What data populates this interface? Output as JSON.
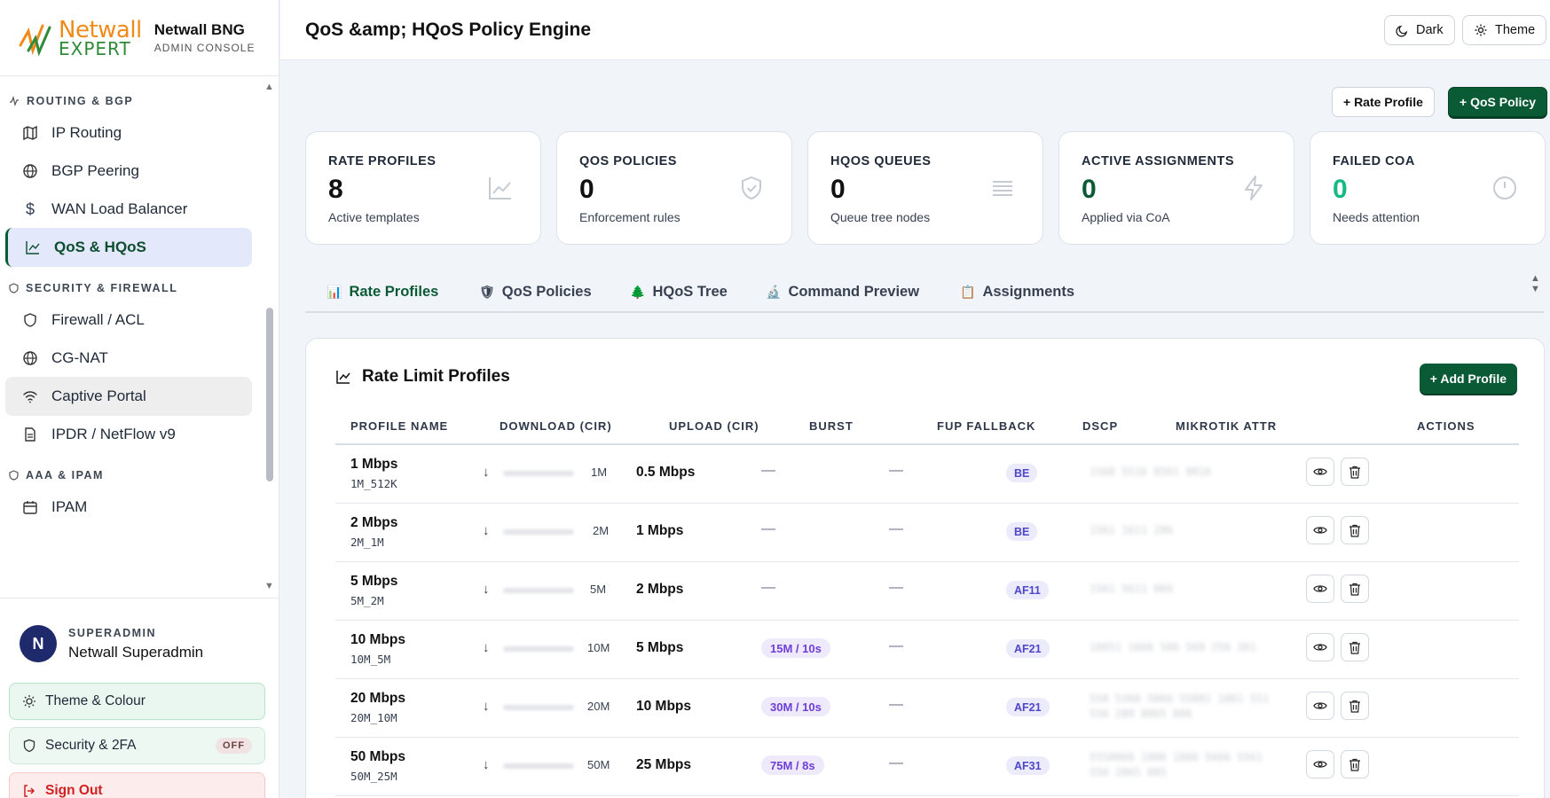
{
  "brand": {
    "logo_top": "Netwall",
    "logo_bottom": "EXPERT",
    "name": "Netwall BNG",
    "sub": "ADMIN CONSOLE"
  },
  "sidebar": {
    "sections": [
      {
        "title": "ROUTING & BGP",
        "icon": "activity-icon"
      },
      {
        "title": "SECURITY & FIREWALL",
        "icon": "shield-icon"
      },
      {
        "title": "AAA & IPAM",
        "icon": "shield-icon"
      }
    ],
    "items": [
      {
        "label": "IP Routing",
        "icon": "map-icon"
      },
      {
        "label": "BGP Peering",
        "icon": "globe-icon"
      },
      {
        "label": "WAN Load Balancer",
        "icon": "dollar-icon"
      },
      {
        "label": "QoS & HQoS",
        "icon": "chart-line-icon"
      },
      {
        "label": "Firewall / ACL",
        "icon": "shield-icon"
      },
      {
        "label": "CG-NAT",
        "icon": "globe-icon"
      },
      {
        "label": "Captive Portal",
        "icon": "wifi-icon"
      },
      {
        "label": "IPDR / NetFlow v9",
        "icon": "document-icon"
      },
      {
        "label": "IPAM",
        "icon": "calendar-icon"
      }
    ]
  },
  "user": {
    "initial": "N",
    "role": "SUPERADMIN",
    "name": "Netwall Superadmin",
    "theme_label": "Theme & Colour",
    "security_label": "Security & 2FA",
    "security_status": "OFF",
    "signout_label": "Sign Out"
  },
  "header": {
    "title": "QoS &amp; HQoS Policy Engine",
    "dark_label": "Dark",
    "theme_label": "Theme"
  },
  "actions": {
    "rate_profile": "+ Rate Profile",
    "qos_policy": "+ QoS Policy"
  },
  "stats": [
    {
      "label": "RATE PROFILES",
      "value": "8",
      "sub": "Active templates",
      "icon": "chart-line-icon"
    },
    {
      "label": "QOS POLICIES",
      "value": "0",
      "sub": "Enforcement rules",
      "icon": "shield-check-icon"
    },
    {
      "label": "HQOS QUEUES",
      "value": "0",
      "sub": "Queue tree nodes",
      "icon": "lines-icon"
    },
    {
      "label": "ACTIVE ASSIGNMENTS",
      "value": "0",
      "sub": "Applied via CoA",
      "icon": "lightning-icon"
    },
    {
      "label": "FAILED COA",
      "value": "0",
      "sub": "Needs attention",
      "icon": "alert-circle-icon"
    }
  ],
  "tabs": [
    {
      "glyph": "📊",
      "label": "Rate Profiles",
      "icon": "bar-chart-icon"
    },
    {
      "glyph": "🛡",
      "label": "QoS Policies",
      "icon": "shield-icon"
    },
    {
      "glyph": "🌲",
      "label": "HQoS Tree",
      "icon": "tree-icon"
    },
    {
      "glyph": "🔬",
      "label": "Command Preview",
      "icon": "microscope-icon"
    },
    {
      "glyph": "📋",
      "label": "Assignments",
      "icon": "clipboard-icon"
    }
  ],
  "panel": {
    "title": "Rate Limit Profiles",
    "add_label": "+ Add Profile",
    "columns": [
      "PROFILE NAME",
      "DOWNLOAD (CIR)",
      "UPLOAD (CIR)",
      "BURST",
      "FUP FALLBACK",
      "DSCP",
      "MIKROTIK ATTR",
      "ACTIONS"
    ]
  },
  "rows": [
    {
      "name": "1 Mbps",
      "code": "1M_512K",
      "arrow": "↓",
      "down": "1M",
      "up": "0.5 Mbps",
      "burst": "—",
      "fup": "—",
      "dscp": "BE",
      "attr": "1568 5516 8561 8816"
    },
    {
      "name": "2 Mbps",
      "code": "2M_1M",
      "arrow": "↓",
      "down": "2M",
      "up": "1 Mbps",
      "burst": "—",
      "fup": "—",
      "dscp": "BE",
      "attr": "1561 1611 286"
    },
    {
      "name": "5 Mbps",
      "code": "5M_2M",
      "arrow": "↓",
      "down": "5M",
      "up": "2 Mbps",
      "burst": "—",
      "fup": "—",
      "dscp": "AF11",
      "attr": "1561 5611 869"
    },
    {
      "name": "10 Mbps",
      "code": "10M_5M",
      "arrow": "↓",
      "down": "10M",
      "up": "5 Mbps",
      "burst": "15M / 10s",
      "fup": "—",
      "dscp": "AF21",
      "attr": "10851 1666 586 569 256 381"
    },
    {
      "name": "20 Mbps",
      "code": "20M_10M",
      "arrow": "↓",
      "down": "20M",
      "up": "10 Mbps",
      "burst": "30M / 10s",
      "fup": "—",
      "dscp": "AF21",
      "attr": "558 5368 5866 55881 1861 551 556 289 8865 886"
    },
    {
      "name": "50 Mbps",
      "code": "50M_25M",
      "arrow": "↓",
      "down": "50M",
      "up": "25 Mbps",
      "burst": "75M / 8s",
      "fup": "—",
      "dscp": "AF31",
      "attr": "5558866 1886 1866 5666 5561 556 2865 885"
    }
  ]
}
